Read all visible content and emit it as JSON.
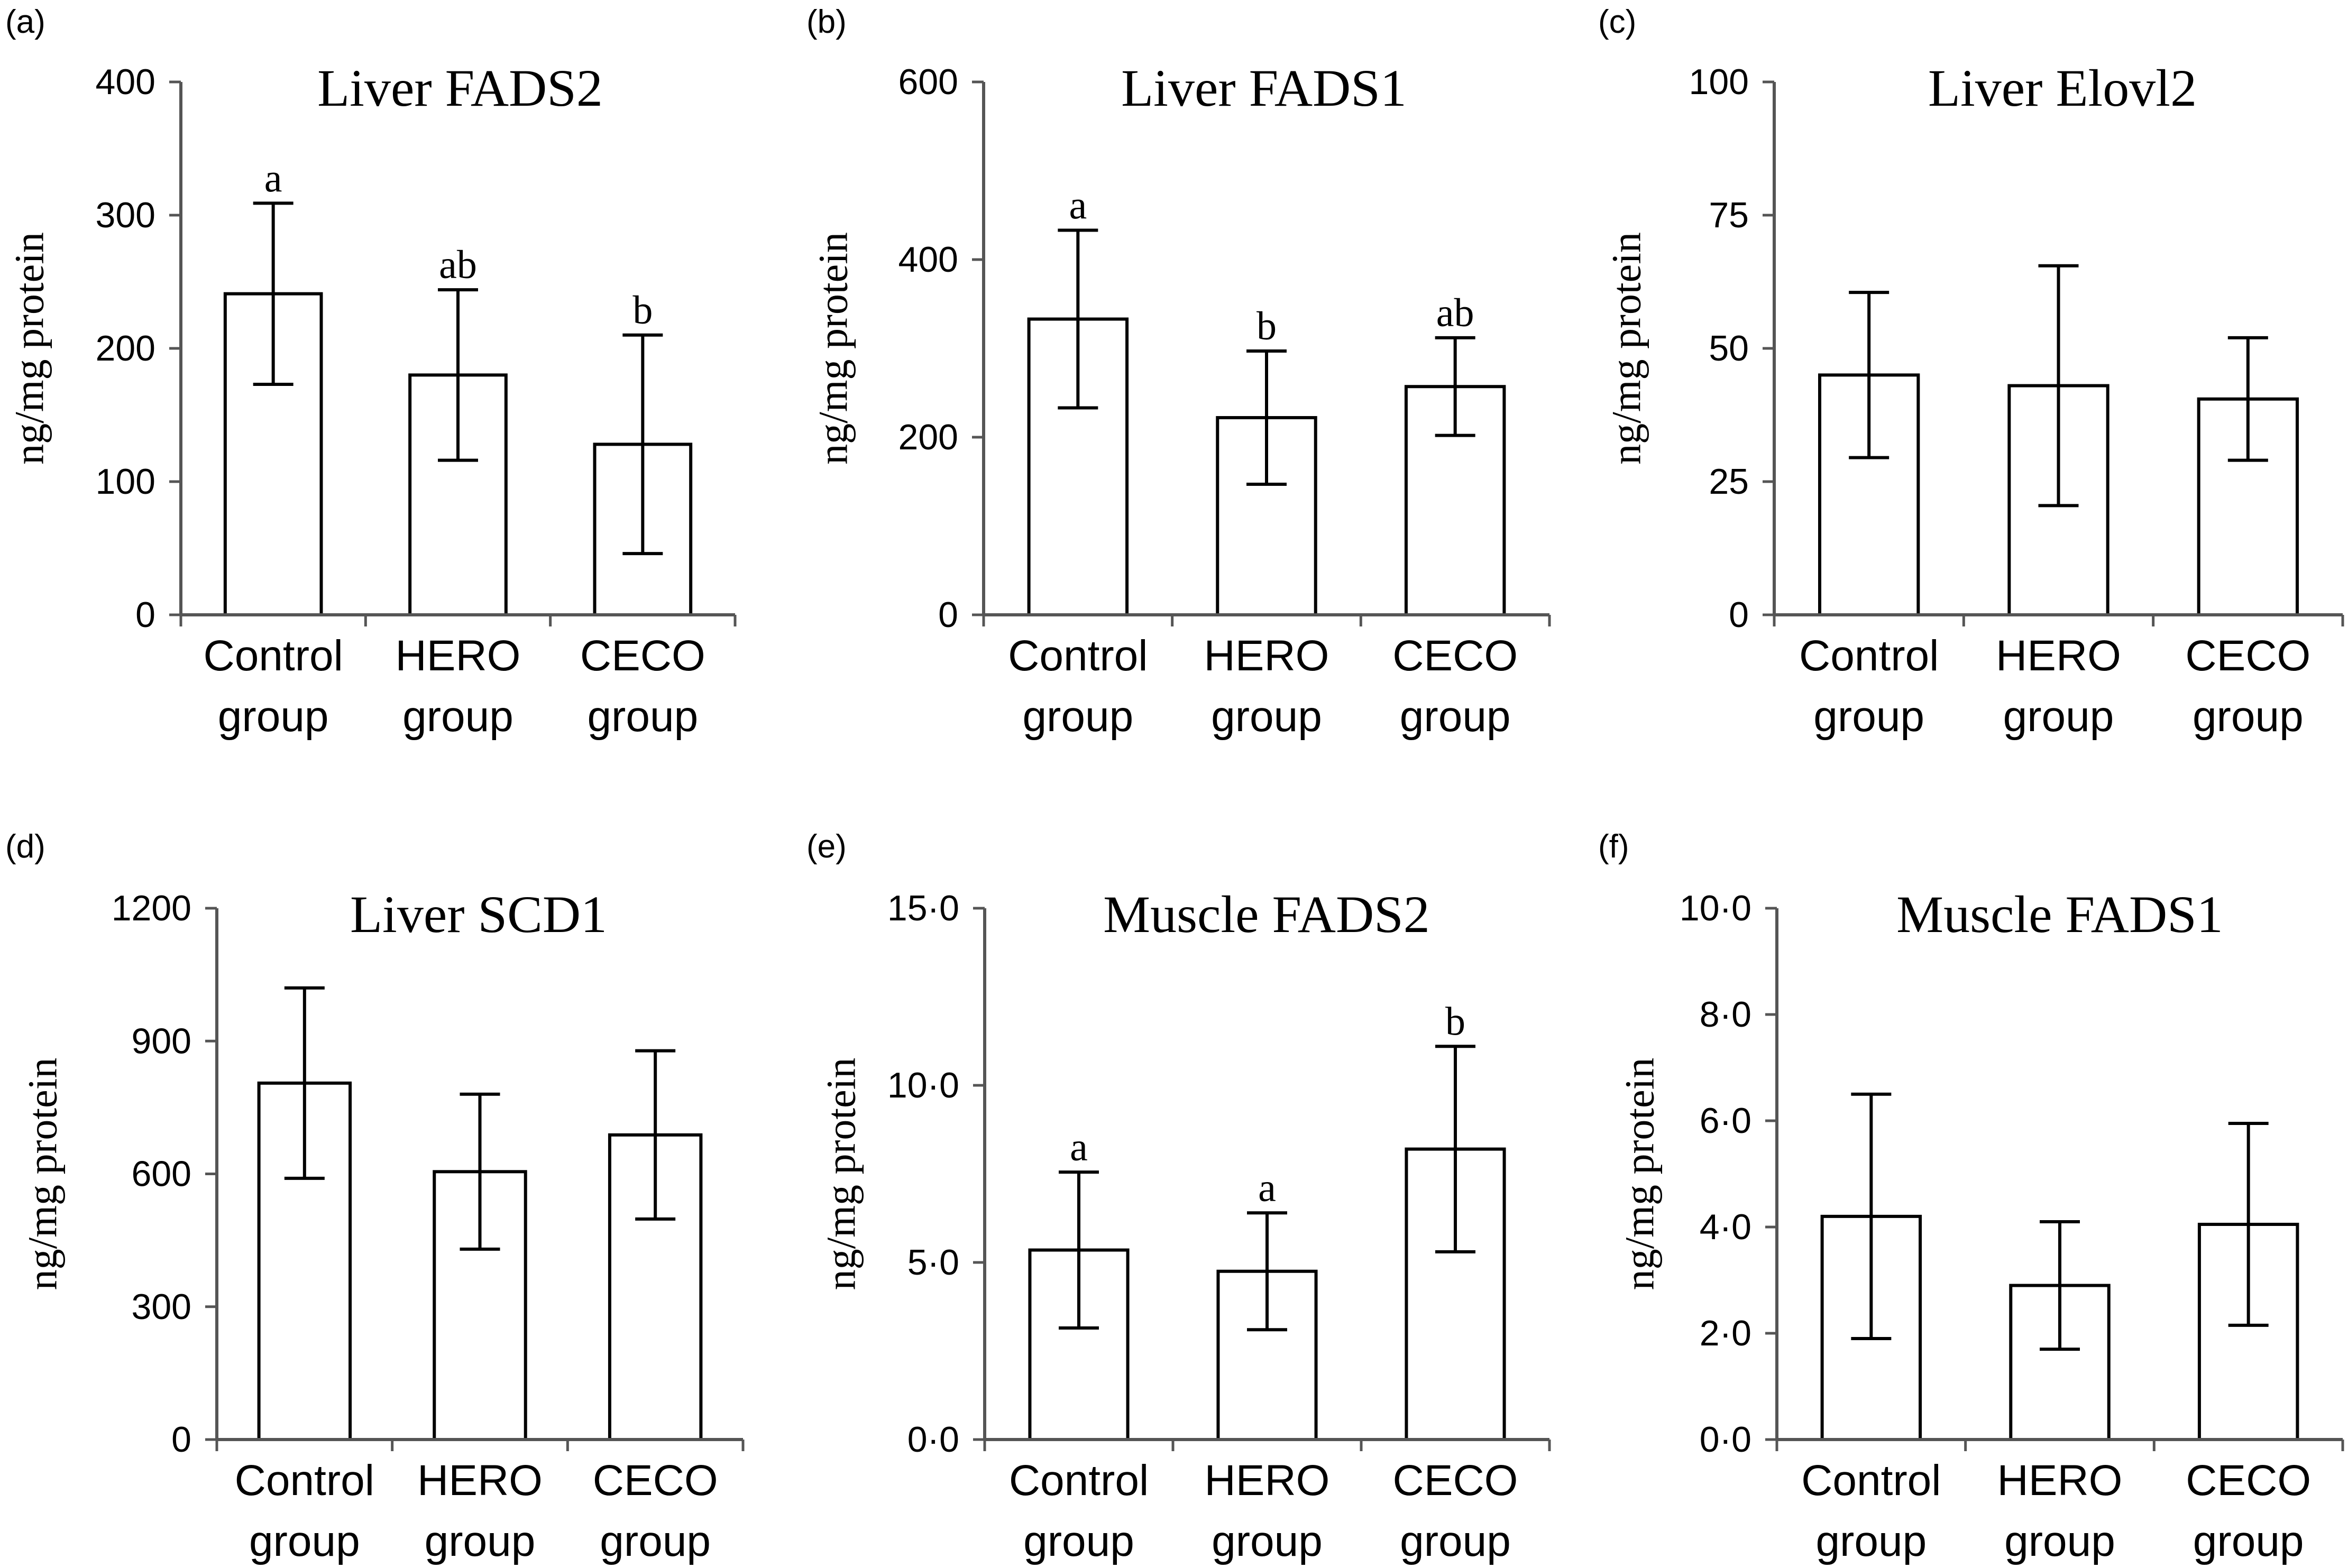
{
  "chart_data": [
    {
      "panel": "(a)",
      "type": "bar",
      "title": "Liver FADS2",
      "ylabel": "ng/mg protein",
      "categories": [
        [
          "Control",
          "group"
        ],
        [
          "HERO",
          "group"
        ],
        [
          "CECO",
          "group"
        ]
      ],
      "values": [
        241,
        180,
        128
      ],
      "errors": [
        68,
        64,
        82
      ],
      "significance": [
        "a",
        "ab",
        "b"
      ],
      "ylim": [
        0,
        400
      ],
      "yticks": [
        0,
        100,
        200,
        300,
        400
      ],
      "ytick_labels": [
        "0",
        "100",
        "200",
        "300",
        "400"
      ]
    },
    {
      "panel": "(b)",
      "type": "bar",
      "title": "Liver FADS1",
      "ylabel": "ng/mg protein",
      "categories": [
        [
          "Control",
          "group"
        ],
        [
          "HERO",
          "group"
        ],
        [
          "CECO",
          "group"
        ]
      ],
      "values": [
        333,
        222,
        257
      ],
      "errors": [
        100,
        75,
        55
      ],
      "significance": [
        "a",
        "b",
        "ab"
      ],
      "ylim": [
        0,
        600
      ],
      "yticks": [
        0,
        200,
        400,
        600
      ],
      "ytick_labels": [
        "0",
        "200",
        "400",
        "600"
      ]
    },
    {
      "panel": "(c)",
      "type": "bar",
      "title": "Liver Elovl2",
      "ylabel": "ng/mg protein",
      "categories": [
        [
          "Control",
          "group"
        ],
        [
          "HERO",
          "group"
        ],
        [
          "CECO",
          "group"
        ]
      ],
      "values": [
        45,
        43,
        40.5
      ],
      "errors": [
        15.5,
        22.5,
        11.5
      ],
      "significance": [
        "",
        "",
        ""
      ],
      "ylim": [
        0,
        100
      ],
      "yticks": [
        0,
        25,
        50,
        75,
        100
      ],
      "ytick_labels": [
        "0",
        "25",
        "50",
        "75",
        "100"
      ]
    },
    {
      "panel": "(d)",
      "type": "bar",
      "title": "Liver SCD1",
      "ylabel": "ng/mg protein",
      "categories": [
        [
          "Control",
          "group"
        ],
        [
          "HERO",
          "group"
        ],
        [
          "CECO",
          "group"
        ]
      ],
      "values": [
        805,
        605,
        688
      ],
      "errors": [
        215,
        175,
        190
      ],
      "significance": [
        "",
        "",
        ""
      ],
      "ylim": [
        0,
        1200
      ],
      "yticks": [
        0,
        300,
        600,
        900,
        1200
      ],
      "ytick_labels": [
        "0",
        "300",
        "600",
        "900",
        "1200"
      ]
    },
    {
      "panel": "(e)",
      "type": "bar",
      "title": "Muscle FADS2",
      "ylabel": "ng/mg protein",
      "categories": [
        [
          "Control",
          "group"
        ],
        [
          "HERO",
          "group"
        ],
        [
          "CECO",
          "group"
        ]
      ],
      "values": [
        5.35,
        4.75,
        8.2
      ],
      "errors": [
        2.2,
        1.65,
        2.9
      ],
      "significance": [
        "a",
        "a",
        "b"
      ],
      "ylim": [
        0,
        15
      ],
      "yticks": [
        0,
        5,
        10,
        15
      ],
      "ytick_labels": [
        "0·0",
        "5·0",
        "10·0",
        "15·0"
      ]
    },
    {
      "panel": "(f)",
      "type": "bar",
      "title": "Muscle FADS1",
      "ylabel": "ng/mg protein",
      "categories": [
        [
          "Control",
          "group"
        ],
        [
          "HERO",
          "group"
        ],
        [
          "CECO",
          "group"
        ]
      ],
      "values": [
        4.2,
        2.9,
        4.05
      ],
      "errors": [
        2.3,
        1.2,
        1.9
      ],
      "significance": [
        "",
        "",
        ""
      ],
      "ylim": [
        0,
        10
      ],
      "yticks": [
        0,
        2,
        4,
        6,
        8,
        10
      ],
      "ytick_labels": [
        "0·0",
        "2·0",
        "4·0",
        "6·0",
        "8·0",
        "10·0"
      ]
    }
  ]
}
